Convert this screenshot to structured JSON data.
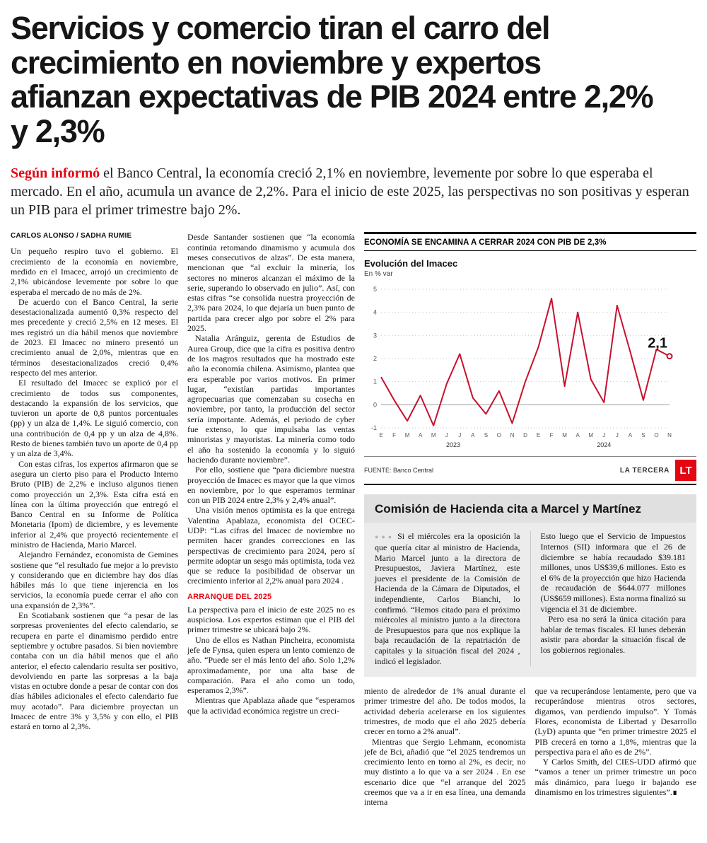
{
  "colors": {
    "accent_red": "#e30613",
    "chart_line": "#c8102e",
    "box_bg": "#ececec"
  },
  "headline": "Servicios y comercio tiran el carro del crecimiento en noviembre y expertos afianzan expectativas de PIB 2024 entre 2,2% y 2,3%",
  "lede": {
    "lead_in": "Según informó",
    "text": " el Banco Central, la economía creció 2,1% en noviembre, levemente por sobre lo que esperaba el mercado. En el año, acumula un avance de 2,2%. Para el inicio de este 2025, las perspectivas no son positivas y esperan un PIB para el primer trimestre bajo 2%."
  },
  "byline": "CARLOS ALONSO / SADHA RUMIE",
  "col1_paragraphs": [
    "Un pequeño respiro tuvo el gobierno. El crecimiento de la economía en noviembre, medido en el Imacec, arrojó un crecimiento de 2,1% ubicándose levemente por sobre lo que esperaba el mercado de no más de 2%.",
    "De acuerdo con el Banco Central, la serie desestacionalizada aumentó 0,3% respecto del mes precedente y creció 2,5% en 12 meses. El mes registró un día hábil menos que noviembre de 2023. El Imacec no minero presentó un crecimiento anual de 2,0%, mientras que en términos desestacionalizados creció 0,4% respecto del mes anterior.",
    "El resultado del Imacec se explicó por el crecimiento de todos sus componentes, destacando la expansión de los servicios, que tuvieron un aporte de 0,8 puntos porcentuales (pp) y un alza de 1,4%. Le siguió comercio, con una contribución de 0,4 pp y un alza de 4,8%. Resto de bienes también tuvo un aporte de 0,4 pp y un alza de 3,4%.",
    "Con estas cifras, los expertos afirmaron que se asegura un cierto piso para el Producto Interno Bruto (PIB) de 2,2% e incluso algunos tienen como proyección un 2,3%. Esta cifra está en línea con la última proyección que entregó el Banco Central en su Informe de Política Monetaria (Ipom) de diciembre, y es levemente inferior al 2,4% que proyectó recientemente el ministro de Hacienda, Mario Marcel.",
    "Alejandro Fernández, economista de Gemines sostiene que “el resultado fue mejor a lo previsto y considerando que en diciembre hay dos días hábiles más lo que tiene injerencia en los servicios, la economía puede cerrar el año con una expansión de 2,3%”.",
    "En Scotiabank sostienen que “a pesar de las sorpresas provenientes del efecto calendario, se recupera en parte el dinamismo perdido entre septiembre y octubre pasados. Si bien noviembre contaba con un día hábil menos que el año anterior, el efecto calendario resulta ser positivo, devolviendo en parte las sorpresas a la baja vistas en octubre donde a pesar de contar con dos días hábiles adicionales el efecto calendario fue muy acotado”. Para diciembre proyectan un Imacec de entre 3% y 3,5% y con ello, el PIB estará en torno al 2,3%."
  ],
  "col2_paragraphs_before": [
    "Desde Santander sostienen que “la economía continúa retomando dinamismo y acumula dos meses consecutivos de alzas”. De esta manera, mencionan que “al excluir la minería, los sectores no mineros alcanzan el máximo de la serie, superando lo observado en julio”. Así, con estas cifras “se consolida nuestra proyección de 2,3% para 2024, lo que dejaría un buen punto de partida para crecer algo por sobre el 2% para 2025.",
    "Natalia Aránguiz, gerenta de Estudios de Aurea Group, dice que la cifra es positiva dentro de los magros resultados que ha mostrado este año la economía chilena. Asimismo, plantea que era esperable por varios motivos. En primer lugar, “existían partidas importantes agropecuarias que comenzaban su cosecha en noviembre, por tanto, la producción del sector sería importante. Además, el periodo de cyber fue extenso, lo que impulsaba las ventas minoristas y mayoristas. La minería como todo el año ha sostenido la economía y lo siguió haciendo durante noviembre”.",
    "Por ello, sostiene que “para diciembre nuestra proyección de Imacec es mayor que la que vimos en noviembre, por lo que esperamos terminar con un PIB 2024 entre 2,3% y 2,4% anual”.",
    "Una visión menos optimista es la que entrega Valentina Apablaza, economista del OCEC-UDP: “Las cifras del Imacec de noviembre no permiten hacer grandes correcciones en las perspectivas de crecimiento para 2024, pero sí permite adoptar un sesgo más optimista, toda vez que se reduce la posibilidad de observar un crecimiento inferior al 2,2% anual para 2024 ."
  ],
  "col2_section_header": "ARRANQUE DEL 2025",
  "col2_paragraphs_after": [
    "La perspectiva para el inicio de este 2025 no es auspiciosa. Los expertos estiman que el PIB del primer trimestre se ubicará bajo 2%.",
    "Uno de ellos es Nathan Pincheira, economista jefe de Fynsa, quien espera un lento comienzo de año. “Puede ser el más lento del año. Solo 1,2% aproximadamente, por una alta base de comparación. Para el año como un todo, esperamos 2,3%”.",
    "Mientras que Apablaza añade que “esperamos que la actividad económica registre un creci-"
  ],
  "chart": {
    "header": "ECONOMÍA SE ENCAMINA A CERRAR 2024 CON PIB DE 2,3%",
    "title": "Evolución del Imacec",
    "unit": "En % var",
    "source": "FUENTE: Banco Central",
    "credit": "LA TERCERA",
    "logo": "LT"
  },
  "chart_data": {
    "type": "line",
    "title": "Evolución del Imacec",
    "unit_label": "En % var",
    "x_labels": [
      "E",
      "F",
      "M",
      "A",
      "M",
      "J",
      "J",
      "A",
      "S",
      "O",
      "N",
      "D",
      "E",
      "F",
      "M",
      "A",
      "M",
      "J",
      "J",
      "A",
      "S",
      "O",
      "N"
    ],
    "year_groups": [
      {
        "label": "2023",
        "count": 12
      },
      {
        "label": "2024",
        "count": 11
      }
    ],
    "values": [
      1.2,
      0.2,
      -0.7,
      0.4,
      -0.9,
      0.9,
      2.2,
      0.3,
      -0.4,
      0.6,
      -0.8,
      1.0,
      2.5,
      4.6,
      0.8,
      4.0,
      1.1,
      0.1,
      4.3,
      2.3,
      0.2,
      2.4,
      2.1
    ],
    "ylim": [
      -1,
      5
    ],
    "yticks": [
      -1,
      0,
      1,
      2,
      3,
      4,
      5
    ],
    "end_label": "2,1",
    "line_color": "#c8102e",
    "grid": true,
    "legend": "none"
  },
  "box": {
    "title": "Comisión de Hacienda cita a Marcel y Martínez",
    "bullets": "●●●",
    "left_text": "Si el miércoles era la oposición la que quería citar al ministro de Hacienda, Mario Marcel junto a la directora de Presupuestos, Javiera Martínez, este jueves el presidente de la Comisión de Hacienda de la Cámara de Diputados, el independiente, Carlos Bianchi, lo confirmó. “Hemos citado para el próximo miércoles al ministro junto a la directora de Presupuestos para que nos explique la baja recaudación de la repatriación de capitales y la situación fiscal del 2024 , indicó el legislador.",
    "right_paragraphs": [
      "Esto luego que el Servicio de Impuestos Internos (SII) informara que el 26 de diciembre se había recaudado $39.181 millones, unos US$39,6 millones. Esto es el 6% de la proyección que hizo Hacienda de recaudación de $644.077 millones (US$659 millones). Esta norma finalizó su vigencia el 31 de diciembre.",
      "Pero esa no será la única citación para hablar de temas fiscales. El lunes deberán asistir para abordar la situación fiscal de los gobiernos regionales."
    ]
  },
  "col3_paragraphs": [
    "miento de alrededor de 1% anual durante el primer trimestre del año. De todos modos, la actividad debería acelerarse en los siguientes trimestres, de modo que el año 2025 debería crecer en torno a 2% anual”.",
    "Mientras que Sergio Lehmann, economista jefe de Bci, añadió que “el 2025 tendremos un crecimiento lento en torno al 2%, es decir, no muy distinto a lo que va a ser 2024 . En ese escenario dice que “el arranque del 2025 creemos que va a ir en esa línea, una demanda interna"
  ],
  "col4_paragraphs": [
    "que va recuperándose lentamente, pero que va recuperándose mientras otros sectores, digamos, van perdiendo impulso”. Y Tomás Flores, economista de Libertad y Desarrollo (LyD) apunta que “en primer trimestre 2025 el PIB crecerá en torno a 1,8%, mientras que la perspectiva para el año es de 2%”.",
    "Y Carlos Smith, del CIES-UDD afirmó que “vamos a tener un primer trimestre un poco más dinámico, para luego ir bajando ese dinamismo en los trimestres siguientes”.∎"
  ]
}
